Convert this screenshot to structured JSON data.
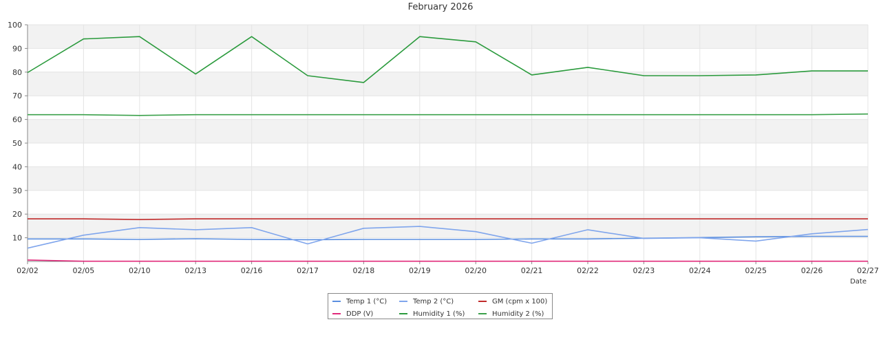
{
  "chart_data": {
    "type": "line",
    "title": "February 2026",
    "xlabel": "Date",
    "ylabel": "",
    "ylim": [
      0,
      100
    ],
    "yticks": [
      10,
      20,
      30,
      40,
      50,
      60,
      70,
      80,
      90,
      100
    ],
    "categories": [
      "02/02",
      "02/05",
      "02/10",
      "02/13",
      "02/16",
      "02/17",
      "02/18",
      "02/19",
      "02/20",
      "02/21",
      "02/22",
      "02/23",
      "02/24",
      "02/25",
      "02/26",
      "02/27"
    ],
    "grid": true,
    "legend_position": "bottom-center",
    "series": [
      {
        "name": "Temp 1 (°C)",
        "color": "#5b8fe0",
        "values": [
          9.5,
          9.5,
          9.3,
          9.6,
          9.3,
          9.2,
          9.3,
          9.3,
          9.3,
          9.5,
          9.5,
          9.8,
          10.1,
          10.4,
          10.6,
          10.6
        ]
      },
      {
        "name": "Temp 2 (°C)",
        "color": "#7fa5ec",
        "values": [
          5.6,
          11.1,
          14.3,
          13.4,
          14.3,
          7.4,
          14.0,
          14.8,
          12.6,
          7.7,
          13.4,
          9.7,
          10.0,
          8.6,
          11.7,
          13.5
        ]
      },
      {
        "name": "GM (cpm x 100)",
        "color": "#c02a2a",
        "values": [
          18.0,
          18.0,
          17.7,
          18.0,
          18.0,
          18.0,
          18.0,
          18.0,
          18.0,
          18.0,
          18.0,
          18.0,
          18.0,
          18.0,
          18.0,
          18.0
        ]
      },
      {
        "name": "DDP (V)",
        "color": "#e0297a",
        "values": [
          0.6,
          0.1,
          0.1,
          0.1,
          0.1,
          0.1,
          0.1,
          0.1,
          0.1,
          0.1,
          0.1,
          0.1,
          0.1,
          0.1,
          0.1,
          0.1
        ]
      },
      {
        "name": "Humidity 1 (%)",
        "color": "#2a9a3c",
        "values": [
          79.8,
          94.0,
          95.0,
          79.2,
          95.0,
          78.5,
          75.6,
          95.0,
          92.8,
          78.8,
          82.0,
          78.5,
          78.5,
          78.8,
          80.5,
          80.5
        ]
      },
      {
        "name": "Humidity 2 (%)",
        "color": "#3aa04a",
        "values": [
          62.0,
          62.0,
          61.7,
          62.0,
          62.0,
          62.0,
          62.0,
          62.0,
          62.0,
          62.0,
          62.0,
          62.0,
          62.0,
          62.0,
          62.0,
          62.3
        ]
      }
    ]
  }
}
